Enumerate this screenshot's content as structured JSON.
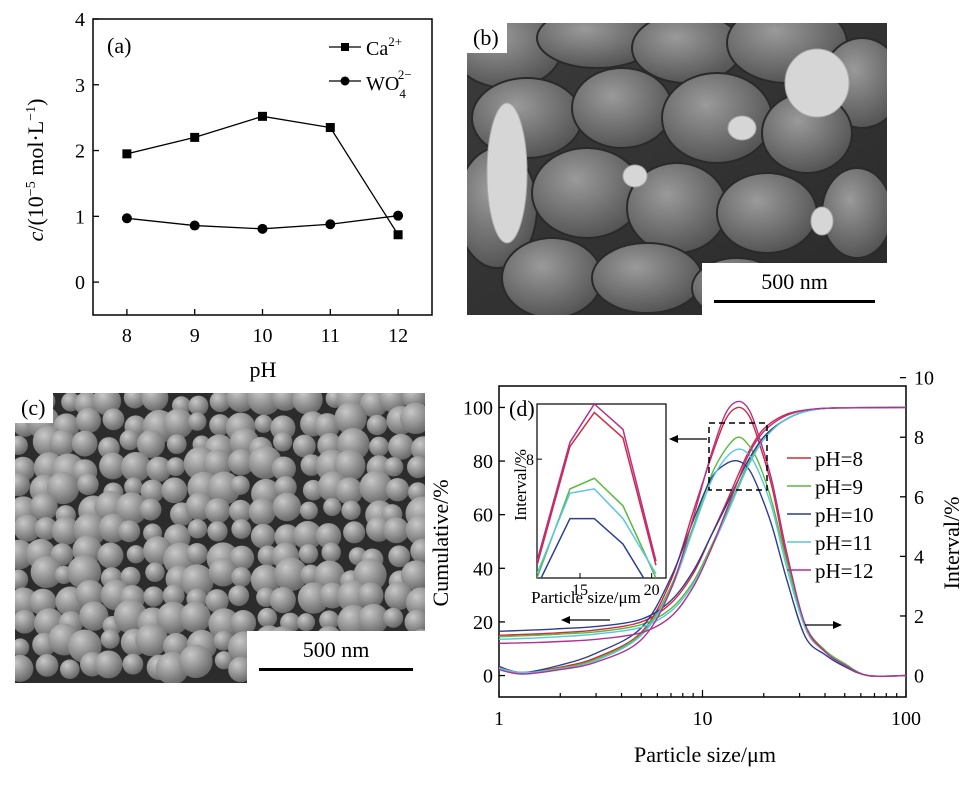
{
  "panel_a": {
    "label": "(a)",
    "ylabel_prefix": "c",
    "ylabel_rest": "/(10",
    "ylabel_exp": "−5",
    "ylabel_unit": " mol·L",
    "ylabel_unit_exp": "−1",
    "ylabel_close": ")",
    "xlabel": "pH",
    "legend_ca": "Ca",
    "legend_ca_sup": "2+",
    "legend_wo": "WO",
    "legend_wo_sub": "4",
    "legend_wo_sup": "2−"
  },
  "panel_b": {
    "label": "(b)",
    "scale_text": "500 nm"
  },
  "panel_c": {
    "label": "(c)",
    "scale_text": "500 nm"
  },
  "panel_d": {
    "label": "(d)",
    "xlabel": "Particle size/μm",
    "ylabel_left": "Cumulative/%",
    "ylabel_right": "Interval/%",
    "inset_xlabel": "Particle size/μm",
    "inset_ylabel": "Interval/%"
  },
  "chart_data": [
    {
      "type": "line",
      "panel": "a",
      "x": [
        8,
        9,
        10,
        11,
        12
      ],
      "xlabel": "pH",
      "ylabel": "c/(10−5 mol·L−1)",
      "xlim": [
        7.5,
        12.5
      ],
      "ylim": [
        -0.5,
        4
      ],
      "yticks": [
        0,
        1,
        2,
        3,
        4
      ],
      "xticks": [
        8,
        9,
        10,
        11,
        12
      ],
      "series": [
        {
          "name": "Ca2+",
          "marker": "square",
          "values": [
            1.95,
            2.2,
            2.52,
            2.35,
            0.72
          ]
        },
        {
          "name": "WO42−",
          "marker": "circle",
          "values": [
            0.97,
            0.86,
            0.81,
            0.88,
            1.01
          ]
        }
      ],
      "legend": "top-right"
    },
    {
      "type": "line",
      "panel": "d",
      "xscale": "log",
      "xlim": [
        1,
        100
      ],
      "xticks": [
        1,
        10,
        100
      ],
      "ylim_left": [
        -8,
        108
      ],
      "yticks_left": [
        0,
        20,
        40,
        60,
        80,
        100
      ],
      "ylim_right": [
        -0.72,
        9.72
      ],
      "yticks_right": [
        0,
        2,
        4,
        6,
        8,
        10
      ],
      "xlabel": "Particle size/μm",
      "ylabel_left": "Cumulative/%",
      "ylabel_right": "Interval/%",
      "legend": "right",
      "series": [
        {
          "name": "pH=8",
          "color": "#d6283a",
          "cumulative": [
            [
              1,
              15
            ],
            [
              1.5,
              15.5
            ],
            [
              2,
              16
            ],
            [
              3,
              17
            ],
            [
              5,
              20
            ],
            [
              7,
              27
            ],
            [
              9,
              38
            ],
            [
              11,
              52
            ],
            [
              13,
              64
            ],
            [
              15,
              75
            ],
            [
              17,
              84
            ],
            [
              20,
              92
            ],
            [
              25,
              97
            ],
            [
              32,
              99
            ],
            [
              45,
              99.8
            ],
            [
              100,
              100
            ]
          ],
          "interval": [
            [
              1,
              0.3
            ],
            [
              1.3,
              0.1
            ],
            [
              2,
              0.28
            ],
            [
              3,
              0.6
            ],
            [
              5,
              1.45
            ],
            [
              7,
              3.2
            ],
            [
              9,
              5.5
            ],
            [
              11,
              7.3
            ],
            [
              13,
              8.6
            ],
            [
              15,
              9.0
            ],
            [
              17,
              8.7
            ],
            [
              19,
              7.8
            ],
            [
              22,
              6.3
            ],
            [
              26,
              3.9
            ],
            [
              32,
              1.6
            ],
            [
              40,
              0.8
            ],
            [
              50,
              0.35
            ],
            [
              65,
              0
            ],
            [
              100,
              0
            ]
          ]
        },
        {
          "name": "pH=9",
          "color": "#58b93a",
          "cumulative": [
            [
              1,
              14.5
            ],
            [
              1.5,
              15
            ],
            [
              2,
              15.5
            ],
            [
              3,
              16.3
            ],
            [
              5,
              19
            ],
            [
              7,
              25
            ],
            [
              9,
              35
            ],
            [
              11,
              48
            ],
            [
              13,
              60
            ],
            [
              15,
              71
            ],
            [
              17,
              80
            ],
            [
              20,
              89
            ],
            [
              25,
              95
            ],
            [
              32,
              98.5
            ],
            [
              45,
              99.8
            ],
            [
              100,
              100
            ]
          ],
          "interval": [
            [
              1,
              0.25
            ],
            [
              1.3,
              0.1
            ],
            [
              2,
              0.25
            ],
            [
              3,
              0.55
            ],
            [
              5,
              1.4
            ],
            [
              7,
              3.0
            ],
            [
              9,
              5.0
            ],
            [
              11,
              6.7
            ],
            [
              13,
              7.6
            ],
            [
              15,
              8.0
            ],
            [
              17,
              7.7
            ],
            [
              19,
              7.1
            ],
            [
              22,
              5.8
            ],
            [
              26,
              3.8
            ],
            [
              32,
              1.7
            ],
            [
              40,
              0.85
            ],
            [
              50,
              0.4
            ],
            [
              65,
              0
            ],
            [
              100,
              0
            ]
          ]
        },
        {
          "name": "pH=10",
          "color": "#2b3e91",
          "cumulative": [
            [
              1,
              16.5
            ],
            [
              1.5,
              17
            ],
            [
              2,
              17.5
            ],
            [
              3,
              18.3
            ],
            [
              5,
              21
            ],
            [
              7,
              28
            ],
            [
              9,
              39
            ],
            [
              11,
              52
            ],
            [
              13,
              63
            ],
            [
              15,
              73
            ],
            [
              17,
              81
            ],
            [
              20,
              89
            ],
            [
              25,
              95
            ],
            [
              32,
              98.5
            ],
            [
              45,
              99.8
            ],
            [
              100,
              100
            ]
          ],
          "interval": [
            [
              1,
              0.3
            ],
            [
              1.3,
              0.1
            ],
            [
              2,
              0.35
            ],
            [
              3,
              0.75
            ],
            [
              5,
              1.6
            ],
            [
              7,
              3.3
            ],
            [
              9,
              5.2
            ],
            [
              11,
              6.6
            ],
            [
              13,
              7.1
            ],
            [
              15,
              7.2
            ],
            [
              17,
              6.9
            ],
            [
              19,
              6.2
            ],
            [
              22,
              5.0
            ],
            [
              26,
              3.2
            ],
            [
              32,
              1.3
            ],
            [
              40,
              0.7
            ],
            [
              50,
              0.3
            ],
            [
              65,
              0
            ],
            [
              100,
              0
            ]
          ]
        },
        {
          "name": "pH=11",
          "color": "#5ac6e0",
          "cumulative": [
            [
              1,
              13.5
            ],
            [
              1.5,
              14
            ],
            [
              2,
              14.5
            ],
            [
              3,
              15.5
            ],
            [
              5,
              18
            ],
            [
              7,
              24
            ],
            [
              9,
              34
            ],
            [
              11,
              47
            ],
            [
              13,
              59
            ],
            [
              15,
              70
            ],
            [
              17,
              79
            ],
            [
              20,
              88
            ],
            [
              25,
              95
            ],
            [
              32,
              98.5
            ],
            [
              45,
              99.8
            ],
            [
              100,
              100
            ]
          ],
          "interval": [
            [
              1,
              0.25
            ],
            [
              1.3,
              0.1
            ],
            [
              2,
              0.22
            ],
            [
              3,
              0.5
            ],
            [
              5,
              1.35
            ],
            [
              7,
              2.9
            ],
            [
              9,
              4.9
            ],
            [
              11,
              6.5
            ],
            [
              13,
              7.3
            ],
            [
              15,
              7.6
            ],
            [
              17,
              7.4
            ],
            [
              19,
              6.8
            ],
            [
              22,
              5.6
            ],
            [
              26,
              3.6
            ],
            [
              32,
              1.6
            ],
            [
              40,
              0.8
            ],
            [
              50,
              0.35
            ],
            [
              65,
              0
            ],
            [
              100,
              0
            ]
          ]
        },
        {
          "name": "pH=12",
          "color": "#b2318f",
          "cumulative": [
            [
              1,
              12
            ],
            [
              1.5,
              12.3
            ],
            [
              2,
              12.7
            ],
            [
              3,
              13.5
            ],
            [
              5,
              16
            ],
            [
              7,
              22
            ],
            [
              9,
              33
            ],
            [
              11,
              47
            ],
            [
              13,
              61
            ],
            [
              15,
              73
            ],
            [
              17,
              83
            ],
            [
              20,
              91
            ],
            [
              25,
              96.5
            ],
            [
              32,
              99
            ],
            [
              45,
              99.8
            ],
            [
              100,
              100
            ]
          ],
          "interval": [
            [
              1,
              0.2
            ],
            [
              1.3,
              0.05
            ],
            [
              2,
              0.2
            ],
            [
              3,
              0.45
            ],
            [
              5,
              1.2
            ],
            [
              7,
              2.9
            ],
            [
              9,
              5.3
            ],
            [
              11,
              7.4
            ],
            [
              13,
              8.8
            ],
            [
              15,
              9.2
            ],
            [
              17,
              8.9
            ],
            [
              19,
              8.0
            ],
            [
              22,
              6.5
            ],
            [
              26,
              4.1
            ],
            [
              32,
              1.7
            ],
            [
              40,
              0.8
            ],
            [
              50,
              0.35
            ],
            [
              65,
              0
            ],
            [
              100,
              0
            ]
          ]
        }
      ],
      "inset": {
        "xlim": [
          12,
          21
        ],
        "ylim": [
          5.2,
          9.3
        ],
        "xticks": [
          15,
          20
        ],
        "yticks": [
          8
        ],
        "xlabel": "Particle size/μm",
        "ylabel": "Interval/%",
        "series": [
          {
            "name": "pH=8",
            "x": [
              12,
              14.3,
              16,
              18,
              20.3
            ],
            "y": [
              5.5,
              8.3,
              9.1,
              8.5,
              5.5
            ]
          },
          {
            "name": "pH=9",
            "x": [
              12,
              14.3,
              16,
              18,
              20.3
            ],
            "y": [
              5.2,
              7.3,
              7.55,
              6.9,
              5.2
            ]
          },
          {
            "name": "pH=10",
            "x": [
              12,
              14.3,
              16,
              18,
              19.8
            ],
            "y": [
              5.0,
              6.6,
              6.6,
              6.0,
              5.0
            ]
          },
          {
            "name": "pH=11",
            "x": [
              12,
              14.3,
              16,
              18,
              20.3
            ],
            "y": [
              5.3,
              7.2,
              7.3,
              6.6,
              5.3
            ]
          },
          {
            "name": "pH=12",
            "x": [
              12,
              14.3,
              16,
              18,
              20.3
            ],
            "y": [
              5.6,
              8.4,
              9.3,
              8.7,
              5.6
            ]
          }
        ]
      }
    }
  ]
}
